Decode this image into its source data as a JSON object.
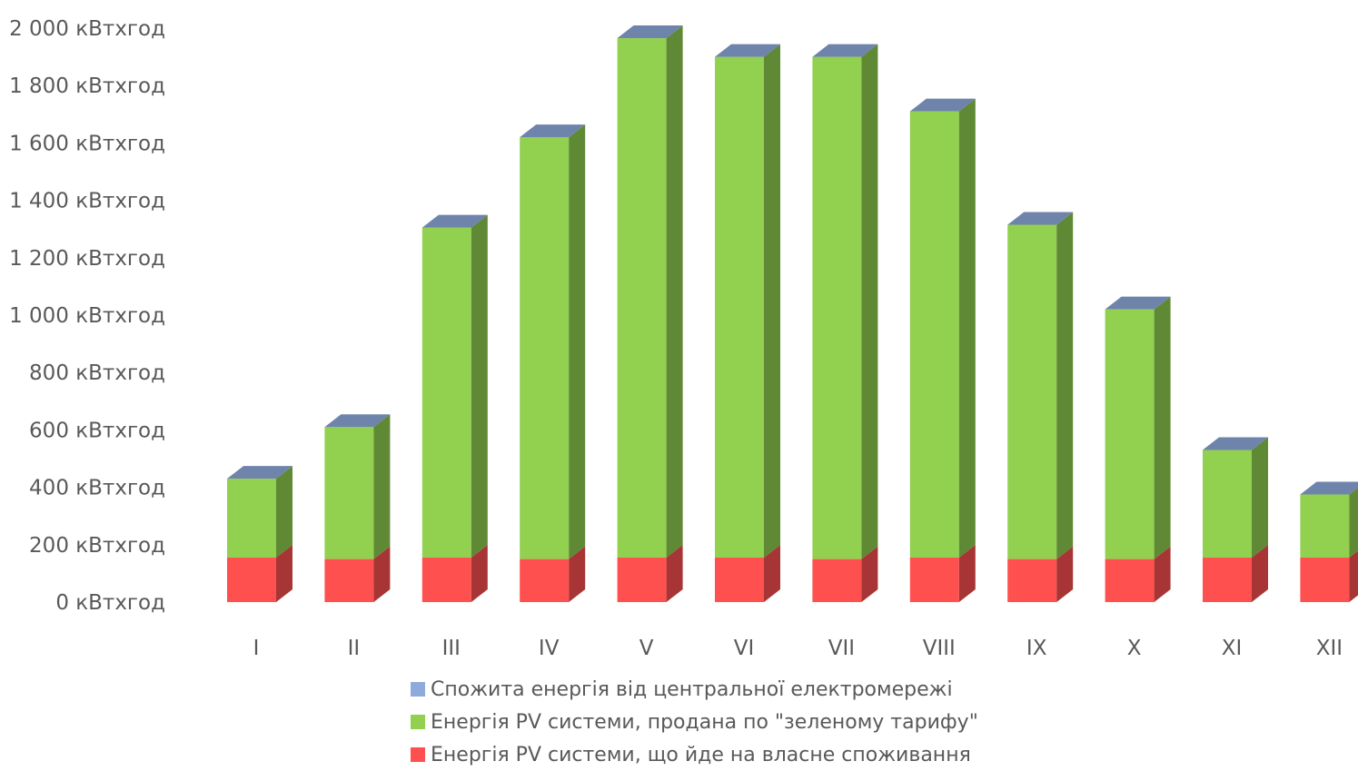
{
  "chart_data": {
    "type": "bar",
    "stacked": true,
    "three_d": true,
    "categories": [
      "I",
      "II",
      "III",
      "IV",
      "V",
      "VI",
      "VII",
      "VIII",
      "IX",
      "X",
      "XI",
      "XII"
    ],
    "series": [
      {
        "name": "Енергія PV системи, що йде на власне споживання",
        "color": "#FF5050",
        "values": [
          155,
          150,
          155,
          150,
          155,
          155,
          150,
          155,
          150,
          150,
          155,
          155
        ]
      },
      {
        "name": "Енергія PV системи, продана по \"зеленому тарифу\"",
        "color": "#92D050",
        "values": [
          275,
          460,
          1150,
          1470,
          1810,
          1745,
          1750,
          1555,
          1165,
          870,
          375,
          220
        ]
      },
      {
        "name": "Спожита енергія від центральної електромережі",
        "color": "#8EA9DB",
        "values": [
          0,
          0,
          0,
          0,
          0,
          0,
          0,
          0,
          0,
          0,
          0,
          0
        ]
      }
    ],
    "ylim": [
      0,
      2000
    ],
    "yticks": [
      0,
      200,
      400,
      600,
      800,
      1000,
      1200,
      1400,
      1600,
      1800,
      2000
    ],
    "ytick_labels": [
      "0 кВтхгод",
      "200 кВтхгод",
      "400 кВтхгод",
      "600 кВтхгод",
      "800 кВтхгод",
      "1 000 кВтхгод",
      "1 200 кВтхгод",
      "1 400 кВтхгод",
      "1 600 кВтхгод",
      "1 800 кВтхгод",
      "2 000 кВтхгод"
    ],
    "legend_order": [
      2,
      1,
      0
    ],
    "legend_position": "bottom",
    "grid": false
  }
}
